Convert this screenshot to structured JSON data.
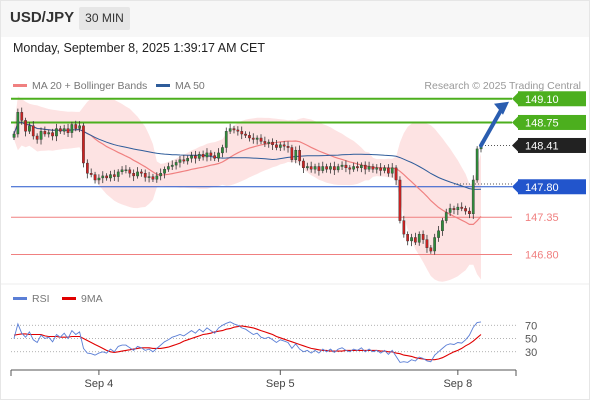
{
  "header": {
    "symbol": "USD/JPY",
    "timeframe": "30 MIN",
    "datetime": "Monday, September 8, 2025 1:39:17 AM CET"
  },
  "legend": {
    "items": [
      {
        "label": "MA 20 + Bollinger Bands",
        "color": "#f08080"
      },
      {
        "label": "MA 50",
        "color": "#2e5c9a"
      }
    ],
    "credit": "Research © 2025 Trading Central"
  },
  "rsi_legend": {
    "items": [
      {
        "label": "RSI",
        "color": "#5b7fd6"
      },
      {
        "label": "9MA",
        "color": "#e00000"
      }
    ]
  },
  "colors": {
    "up": "#2e8b3a",
    "down": "#cc2222",
    "resistance": "#4caf1e",
    "support": "#f08080",
    "pivot": "#2255cc",
    "current": "#222222",
    "arrow": "#2a5db0"
  },
  "chart_data": [
    {
      "type": "candlestick",
      "ylim": [
        146.6,
        149.2
      ],
      "x_ticks": [
        {
          "label": "Sep 4",
          "index": 22
        },
        {
          "label": "Sep 5",
          "index": 69
        },
        {
          "label": "Sep 8",
          "index": 115
        }
      ],
      "levels": [
        {
          "value": 149.1,
          "label": "149.10",
          "kind": "resistance"
        },
        {
          "value": 148.75,
          "label": "148.75",
          "kind": "resistance"
        },
        {
          "value": 148.41,
          "label": "148.41",
          "kind": "current"
        },
        {
          "value": 147.8,
          "label": "147.80",
          "kind": "pivot"
        },
        {
          "value": 147.35,
          "label": "147.35",
          "kind": "support"
        },
        {
          "value": 146.8,
          "label": "146.80",
          "kind": "support"
        }
      ],
      "close": [
        148.58,
        148.9,
        148.78,
        148.62,
        148.7,
        148.55,
        148.5,
        148.62,
        148.58,
        148.6,
        148.55,
        148.66,
        148.62,
        148.66,
        148.6,
        148.72,
        148.66,
        148.7,
        148.15,
        148.0,
        147.98,
        147.9,
        147.93,
        147.96,
        147.93,
        147.98,
        147.95,
        148.02,
        148.05,
        148.05,
        148.0,
        147.96,
        148.02,
        148.0,
        147.94,
        147.95,
        147.91,
        147.96,
        148.0,
        148.06,
        148.1,
        148.12,
        148.16,
        148.2,
        148.18,
        148.22,
        148.26,
        148.22,
        148.28,
        148.24,
        148.3,
        148.26,
        148.22,
        148.3,
        148.38,
        148.62,
        148.66,
        148.64,
        148.62,
        148.58,
        148.56,
        148.52,
        148.5,
        148.52,
        148.47,
        148.44,
        148.46,
        148.42,
        148.38,
        148.42,
        148.4,
        148.38,
        148.2,
        148.34,
        148.18,
        148.08,
        148.1,
        148.06,
        148.1,
        148.04,
        148.1,
        148.06,
        148.1,
        148.05,
        148.1,
        148.12,
        148.08,
        148.06,
        148.1,
        148.08,
        148.12,
        148.06,
        148.1,
        148.06,
        148.08,
        148.04,
        148.08,
        148.0,
        148.08,
        147.9,
        147.3,
        147.1,
        147.0,
        147.05,
        146.98,
        147.1,
        147.02,
        146.9,
        146.85,
        147.05,
        147.15,
        147.3,
        147.42,
        147.48,
        147.46,
        147.5,
        147.48,
        147.44,
        147.4,
        147.9,
        148.36,
        148.41
      ]
    },
    {
      "type": "line",
      "title": "",
      "ylim": [
        10,
        90
      ],
      "reference_lines": [
        70,
        50,
        30
      ],
      "series": [
        {
          "name": "RSI",
          "values": [
            50,
            72,
            58,
            52,
            60,
            48,
            44,
            55,
            50,
            52,
            45,
            56,
            52,
            58,
            50,
            62,
            56,
            60,
            35,
            28,
            27,
            25,
            28,
            30,
            28,
            34,
            30,
            38,
            40,
            40,
            36,
            32,
            38,
            36,
            32,
            34,
            30,
            35,
            40,
            45,
            48,
            52,
            54,
            56,
            54,
            58,
            62,
            58,
            64,
            60,
            66,
            62,
            58,
            66,
            70,
            73,
            75,
            72,
            70,
            66,
            64,
            60,
            56,
            58,
            52,
            50,
            52,
            48,
            44,
            48,
            46,
            44,
            35,
            42,
            34,
            30,
            32,
            28,
            32,
            28,
            34,
            30,
            34,
            29,
            34,
            36,
            32,
            30,
            34,
            32,
            36,
            30,
            34,
            30,
            32,
            28,
            32,
            26,
            32,
            23,
            14,
            15,
            14,
            18,
            16,
            22,
            20,
            16,
            15,
            25,
            30,
            35,
            40,
            42,
            41,
            44,
            43,
            48,
            55,
            67,
            74,
            75
          ]
        },
        {
          "name": "9MA",
          "values": [
            55,
            56,
            57,
            57,
            56,
            56,
            56,
            56,
            54,
            53,
            53,
            53,
            52,
            52,
            52,
            53,
            53,
            53,
            50,
            47,
            44,
            41,
            38,
            35,
            32,
            30,
            29,
            30,
            31,
            32,
            33,
            34,
            35,
            36,
            36,
            36,
            35,
            35,
            35,
            36,
            37,
            39,
            41,
            43,
            46,
            48,
            50,
            52,
            54,
            56,
            57,
            58,
            60,
            61,
            62,
            64,
            65,
            67,
            68,
            69,
            68,
            67,
            66,
            64,
            62,
            60,
            58,
            56,
            53,
            51,
            49,
            47,
            45,
            43,
            41,
            39,
            37,
            35,
            34,
            33,
            32,
            32,
            31,
            31,
            31,
            31,
            32,
            32,
            32,
            32,
            32,
            32,
            32,
            32,
            32,
            31,
            31,
            30,
            30,
            28,
            27,
            25,
            24,
            23,
            21,
            20,
            19,
            18,
            18,
            18,
            19,
            21,
            24,
            27,
            30,
            32,
            35,
            39,
            42,
            46,
            51,
            56
          ]
        }
      ]
    }
  ]
}
